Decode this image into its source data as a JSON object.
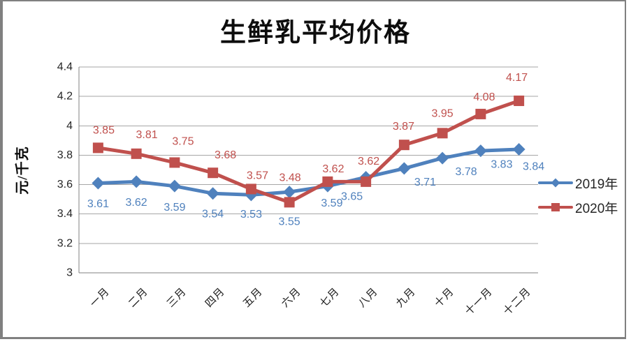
{
  "chart_data": {
    "type": "line",
    "title": "生鲜乳平均价格",
    "ylabel": "元/千克",
    "xlabel": "",
    "categories": [
      "一月",
      "二月",
      "三月",
      "四月",
      "五月",
      "六月",
      "七月",
      "八月",
      "九月",
      "十月",
      "十一月",
      "十二月"
    ],
    "series": [
      {
        "name": "2019年",
        "color": "#4F81BD",
        "marker": "diamond",
        "values": [
          3.61,
          3.62,
          3.59,
          3.54,
          3.53,
          3.55,
          3.59,
          3.65,
          3.71,
          3.78,
          3.83,
          3.84
        ]
      },
      {
        "name": "2020年",
        "color": "#C0504D",
        "marker": "square",
        "values": [
          3.85,
          3.81,
          3.75,
          3.68,
          3.57,
          3.48,
          3.62,
          3.62,
          3.87,
          3.95,
          4.08,
          4.17
        ]
      }
    ],
    "ylim": [
      3,
      4.4
    ],
    "ytick_step": 0.2,
    "yticks": [
      "4.4",
      "4.2",
      "4",
      "3.8",
      "3.6",
      "3.4",
      "3.2",
      "3"
    ],
    "grid": true,
    "data_labels": true,
    "legend_position": "right",
    "colors": {
      "axis": "#808080",
      "gridline": "#a6a6a6",
      "tick_text": "#262626"
    }
  }
}
